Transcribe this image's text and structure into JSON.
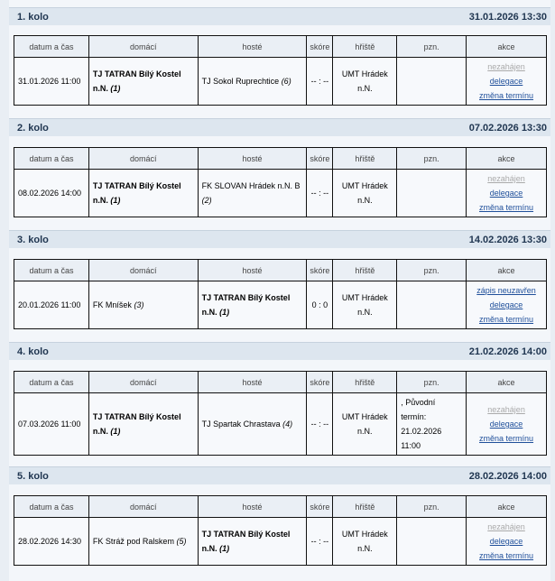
{
  "headers": {
    "datum": "datum a čas",
    "domaci": "domácí",
    "hoste": "hosté",
    "skore": "skóre",
    "hriste": "hřiště",
    "pzn": "pzn.",
    "akce": "akce"
  },
  "rounds": [
    {
      "title": "1. kolo",
      "date": "31.01.2026 13:30",
      "datetime": "31.01.2026 11:00",
      "home": "TJ TATRAN Bílý Kostel n.N.",
      "home_rank": "(1)",
      "home_bold": true,
      "away": "TJ Sokol Ruprechtice",
      "away_rank": "(6)",
      "away_bold": false,
      "score": "-- : --",
      "venue": "UMT Hrádek n.N.",
      "note": "",
      "actions": [
        {
          "label": "nezahájen",
          "grey": true
        },
        {
          "label": "delegace"
        },
        {
          "label": "změna termínu"
        }
      ]
    },
    {
      "title": "2. kolo",
      "date": "07.02.2026 13:30",
      "datetime": "08.02.2026 14:00",
      "home": "TJ TATRAN Bílý Kostel n.N.",
      "home_rank": "(1)",
      "home_bold": true,
      "away": "FK SLOVAN Hrádek n.N. B",
      "away_rank": "(2)",
      "away_bold": false,
      "score": "-- : --",
      "venue": "UMT Hrádek n.N.",
      "note": "",
      "actions": [
        {
          "label": "nezahájen",
          "grey": true
        },
        {
          "label": "delegace"
        },
        {
          "label": "změna termínu"
        }
      ]
    },
    {
      "title": "3. kolo",
      "date": "14.02.2026 13:30",
      "datetime": "20.01.2026 11:00",
      "home": "FK Mníšek",
      "home_rank": "(3)",
      "home_bold": false,
      "away": "TJ TATRAN Bílý Kostel n.N.",
      "away_rank": "(1)",
      "away_bold": true,
      "score": "0 : 0",
      "venue": "UMT Hrádek n.N.",
      "note": "",
      "actions": [
        {
          "label": "zápis neuzavřen"
        },
        {
          "label": "delegace"
        },
        {
          "label": "změna termínu"
        }
      ]
    },
    {
      "title": "4. kolo",
      "date": "21.02.2026 14:00",
      "datetime": "07.03.2026 11:00",
      "home": "TJ TATRAN Bílý Kostel n.N.",
      "home_rank": "(1)",
      "home_bold": true,
      "away": "TJ Spartak Chrastava",
      "away_rank": "(4)",
      "away_bold": false,
      "score": "-- : --",
      "venue": "UMT Hrádek n.N.",
      "note": ", Původní termín: 21.02.2026 11:00",
      "actions": [
        {
          "label": "nezahájen",
          "grey": true
        },
        {
          "label": "delegace"
        },
        {
          "label": "změna termínu"
        }
      ]
    },
    {
      "title": "5. kolo",
      "date": "28.02.2026 14:00",
      "datetime": "28.02.2026 14:30",
      "home": "FK Stráž pod Ralskem",
      "home_rank": "(5)",
      "home_bold": false,
      "away": "TJ TATRAN Bílý Kostel n.N.",
      "away_rank": "(1)",
      "away_bold": true,
      "score": "-- : --",
      "venue": "UMT Hrádek n.N.",
      "note": "",
      "actions": [
        {
          "label": "nezahájen",
          "grey": true
        },
        {
          "label": "delegace"
        },
        {
          "label": "změna termínu"
        }
      ]
    }
  ]
}
